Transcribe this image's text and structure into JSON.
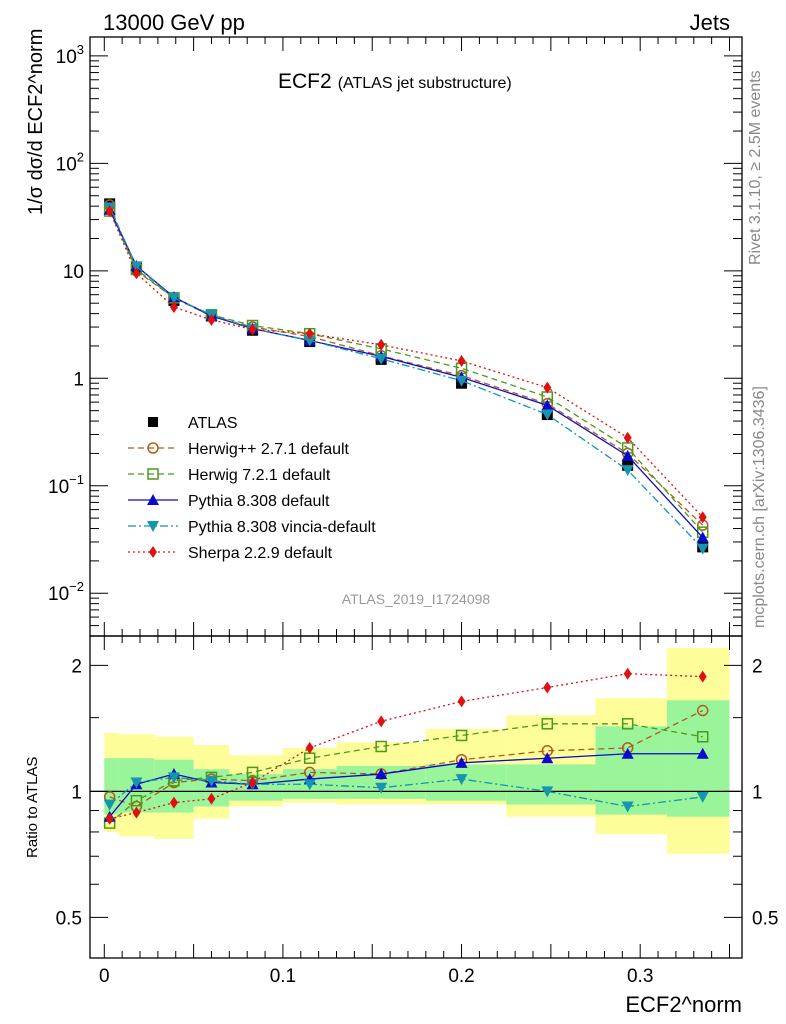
{
  "header": {
    "left_label": "13000 GeV pp",
    "right_label": "Jets",
    "side_label_top": "Rivet 3.1.10, ≥ 2.5M events",
    "side_label_bottom": "mcplots.cern.ch [arXiv:1306.3436]"
  },
  "chart_data": [
    {
      "type": "line",
      "title": "ECF2",
      "subtitle": "(ATLAS jet substructure)",
      "analysis_label": "ATLAS_2019_I1724098",
      "ylabel": "1/σ dσ/d ECF2^norm",
      "yscale": "log",
      "ylim": [
        0.004,
        1500
      ],
      "y_tick_labels": [
        "10^-2",
        "10^-1",
        "1",
        "10",
        "10^2",
        "10^3"
      ],
      "legend_position": "center-left",
      "x": [
        0.003,
        0.018,
        0.039,
        0.06,
        0.083,
        0.115,
        0.155,
        0.2,
        0.248,
        0.293,
        0.335
      ],
      "series": [
        {
          "name": "ATLAS",
          "color": "#000000",
          "marker": "square",
          "values": [
            42,
            10.8,
            5.3,
            3.8,
            2.8,
            2.2,
            1.5,
            0.9,
            0.46,
            0.155,
            0.027
          ]
        },
        {
          "name": "Herwig++ 2.7.1 default",
          "color": "#b05c1e",
          "marker": "open-circle",
          "dash": "dashed",
          "values": [
            41,
            10.0,
            5.6,
            3.8,
            3.0,
            2.45,
            1.62,
            1.06,
            0.58,
            0.2,
            0.043
          ]
        },
        {
          "name": "Herwig 7.2.1 default",
          "color": "#4a9a1e",
          "marker": "open-square",
          "dash": "dashed",
          "values": [
            36,
            10.3,
            5.6,
            3.9,
            3.1,
            2.6,
            1.88,
            1.24,
            0.67,
            0.225,
            0.037
          ]
        },
        {
          "name": "Pythia 8.308 default",
          "color": "#0a0acc",
          "marker": "triangle-up",
          "dash": "solid",
          "values": [
            37,
            11.1,
            5.7,
            3.8,
            2.9,
            2.25,
            1.6,
            1.02,
            0.56,
            0.19,
            0.033
          ]
        },
        {
          "name": "Pythia 8.308 vincia-default",
          "color": "#1595b0",
          "marker": "triangle-down",
          "dash": "dashdot",
          "values": [
            39,
            11.0,
            5.6,
            3.9,
            2.9,
            2.25,
            1.52,
            0.95,
            0.46,
            0.14,
            0.026
          ]
        },
        {
          "name": "Sherpa 2.2.9 default",
          "color": "#e01010",
          "marker": "diamond",
          "dash": "dotted",
          "values": [
            36,
            9.5,
            4.6,
            3.5,
            2.85,
            2.6,
            2.05,
            1.45,
            0.82,
            0.28,
            0.051
          ]
        }
      ]
    },
    {
      "type": "line",
      "ylabel": "Ratio to ATLAS",
      "xlabel": "ECF2^norm",
      "xlim": [
        -0.008,
        0.357
      ],
      "ylim": [
        0.4,
        2.35
      ],
      "yscale": "log",
      "y_tick_labels": [
        "0.5",
        "1",
        "2"
      ],
      "x_tick_labels": [
        "0",
        "0.1",
        "0.2",
        "0.3"
      ],
      "uncertainty_bands": {
        "bins": [
          [
            0,
            0.008
          ],
          [
            0.008,
            0.028
          ],
          [
            0.028,
            0.05
          ],
          [
            0.05,
            0.07
          ],
          [
            0.07,
            0.1
          ],
          [
            0.1,
            0.13
          ],
          [
            0.13,
            0.18
          ],
          [
            0.18,
            0.225
          ],
          [
            0.225,
            0.275
          ],
          [
            0.275,
            0.315
          ],
          [
            0.315,
            0.35
          ]
        ],
        "green": [
          [
            0.88,
            1.2
          ],
          [
            0.89,
            1.2
          ],
          [
            0.89,
            1.19
          ],
          [
            0.92,
            1.13
          ],
          [
            0.95,
            1.1
          ],
          [
            0.96,
            1.13
          ],
          [
            0.96,
            1.15
          ],
          [
            0.95,
            1.16
          ],
          [
            0.93,
            1.16
          ],
          [
            0.88,
            1.43
          ],
          [
            0.87,
            1.65
          ]
        ],
        "yellow": [
          [
            0.8,
            1.38
          ],
          [
            0.78,
            1.37
          ],
          [
            0.77,
            1.35
          ],
          [
            0.86,
            1.29
          ],
          [
            0.92,
            1.22
          ],
          [
            0.94,
            1.27
          ],
          [
            0.93,
            1.31
          ],
          [
            0.93,
            1.41
          ],
          [
            0.87,
            1.52
          ],
          [
            0.79,
            1.67
          ],
          [
            0.71,
            2.2
          ]
        ]
      },
      "x": [
        0.003,
        0.018,
        0.039,
        0.06,
        0.083,
        0.115,
        0.155,
        0.2,
        0.248,
        0.293,
        0.335
      ],
      "series": [
        {
          "name": "Herwig++ 2.7.1 default",
          "color": "#b05c1e",
          "marker": "open-circle",
          "dash": "dashed",
          "values": [
            0.97,
            0.92,
            1.05,
            1.07,
            1.06,
            1.11,
            1.1,
            1.19,
            1.25,
            1.27,
            1.56
          ]
        },
        {
          "name": "Herwig 7.2.1 default",
          "color": "#4a9a1e",
          "marker": "open-square",
          "dash": "dashed",
          "values": [
            0.84,
            0.95,
            1.06,
            1.08,
            1.11,
            1.2,
            1.28,
            1.36,
            1.45,
            1.45,
            1.35
          ]
        },
        {
          "name": "Pythia 8.308 default",
          "color": "#0a0acc",
          "marker": "triangle-up",
          "dash": "solid",
          "values": [
            0.87,
            1.04,
            1.1,
            1.05,
            1.04,
            1.07,
            1.1,
            1.17,
            1.2,
            1.23,
            1.23
          ]
        },
        {
          "name": "Pythia 8.308 vincia-default",
          "color": "#1595b0",
          "marker": "triangle-down",
          "dash": "dashdot",
          "values": [
            0.93,
            1.05,
            1.08,
            1.06,
            1.04,
            1.04,
            1.02,
            1.07,
            1.0,
            0.92,
            0.97
          ]
        },
        {
          "name": "Sherpa 2.2.9 default",
          "color": "#e01010",
          "marker": "diamond",
          "dash": "dotted",
          "values": [
            0.86,
            0.89,
            0.94,
            0.96,
            1.05,
            1.27,
            1.47,
            1.64,
            1.77,
            1.91,
            1.88
          ]
        }
      ]
    }
  ]
}
